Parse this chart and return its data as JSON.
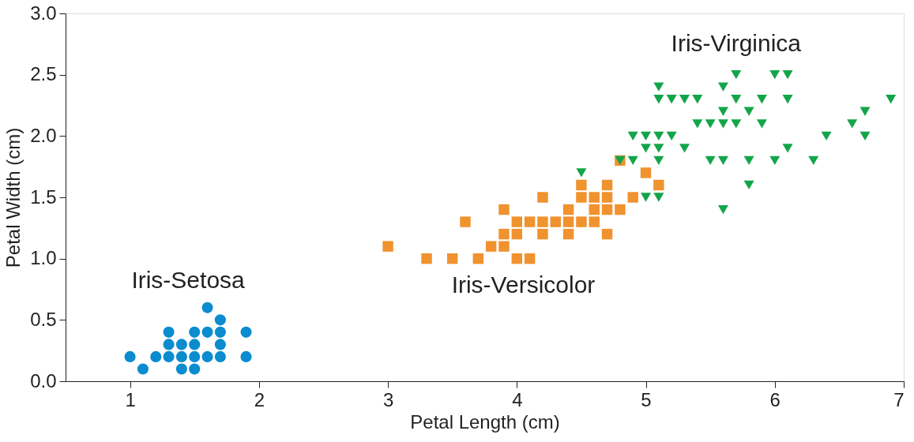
{
  "chart_data": {
    "type": "scatter",
    "xlabel": "Petal Length (cm)",
    "ylabel": "Petal Width (cm)",
    "xlim": [
      0.5,
      7
    ],
    "xticks": [
      1,
      2,
      3,
      4,
      5,
      6,
      7
    ],
    "ylim": [
      0,
      3
    ],
    "yticks": [
      {
        "value": 0,
        "label": "0.0"
      },
      {
        "value": 0.5,
        "label": "0.5"
      },
      {
        "value": 1,
        "label": "1.0"
      },
      {
        "value": 1.5,
        "label": "1.5"
      },
      {
        "value": 2,
        "label": "2.0"
      },
      {
        "value": 2.5,
        "label": "2.5"
      },
      {
        "value": 3,
        "label": "3.0"
      }
    ],
    "grid": false,
    "series": [
      {
        "name": "Iris-Setosa",
        "color": "#0a8ccf",
        "marker": "circle",
        "x": [
          1.0,
          1.1,
          1.2,
          1.3,
          1.3,
          1.3,
          1.4,
          1.4,
          1.4,
          1.5,
          1.5,
          1.5,
          1.5,
          1.6,
          1.6,
          1.6,
          1.7,
          1.7,
          1.7,
          1.7,
          1.9,
          1.9
        ],
        "values": [
          0.2,
          0.1,
          0.2,
          0.2,
          0.3,
          0.4,
          0.1,
          0.2,
          0.3,
          0.1,
          0.2,
          0.3,
          0.4,
          0.2,
          0.4,
          0.6,
          0.2,
          0.3,
          0.4,
          0.5,
          0.2,
          0.4
        ]
      },
      {
        "name": "Iris-Versicolor",
        "color": "#f0922e",
        "marker": "square",
        "x": [
          3.0,
          3.3,
          3.5,
          3.6,
          3.7,
          3.8,
          3.9,
          3.9,
          3.9,
          4.0,
          4.0,
          4.0,
          4.1,
          4.1,
          4.2,
          4.2,
          4.2,
          4.3,
          4.4,
          4.4,
          4.4,
          4.5,
          4.5,
          4.5,
          4.6,
          4.6,
          4.6,
          4.7,
          4.7,
          4.7,
          4.7,
          4.8,
          4.8,
          4.9,
          5.0,
          5.1
        ],
        "values": [
          1.1,
          1.0,
          1.0,
          1.3,
          1.0,
          1.1,
          1.1,
          1.2,
          1.4,
          1.0,
          1.2,
          1.3,
          1.0,
          1.3,
          1.2,
          1.3,
          1.5,
          1.3,
          1.2,
          1.3,
          1.4,
          1.3,
          1.5,
          1.6,
          1.3,
          1.4,
          1.5,
          1.2,
          1.4,
          1.5,
          1.6,
          1.4,
          1.8,
          1.5,
          1.7,
          1.6
        ]
      },
      {
        "name": "Iris-Virginica",
        "color": "#13a54a",
        "marker": "triangle",
        "x": [
          4.5,
          4.8,
          4.9,
          4.9,
          5.0,
          5.0,
          5.0,
          5.1,
          5.1,
          5.1,
          5.1,
          5.1,
          5.1,
          5.2,
          5.2,
          5.3,
          5.3,
          5.4,
          5.4,
          5.5,
          5.5,
          5.6,
          5.6,
          5.6,
          5.6,
          5.6,
          5.7,
          5.7,
          5.7,
          5.8,
          5.8,
          5.8,
          5.9,
          5.9,
          6.0,
          6.0,
          6.1,
          6.1,
          6.1,
          6.3,
          6.4,
          6.6,
          6.7,
          6.7,
          6.9
        ],
        "values": [
          1.7,
          1.8,
          1.8,
          2.0,
          1.5,
          1.9,
          2.0,
          1.5,
          1.8,
          1.9,
          2.0,
          2.3,
          2.4,
          2.0,
          2.3,
          1.9,
          2.3,
          2.1,
          2.3,
          1.8,
          2.1,
          1.4,
          1.8,
          2.1,
          2.2,
          2.4,
          2.1,
          2.3,
          2.5,
          1.6,
          1.8,
          2.2,
          2.1,
          2.3,
          1.8,
          2.5,
          1.9,
          2.3,
          2.5,
          1.8,
          2.0,
          2.1,
          2.0,
          2.2,
          2.3
        ]
      }
    ]
  }
}
